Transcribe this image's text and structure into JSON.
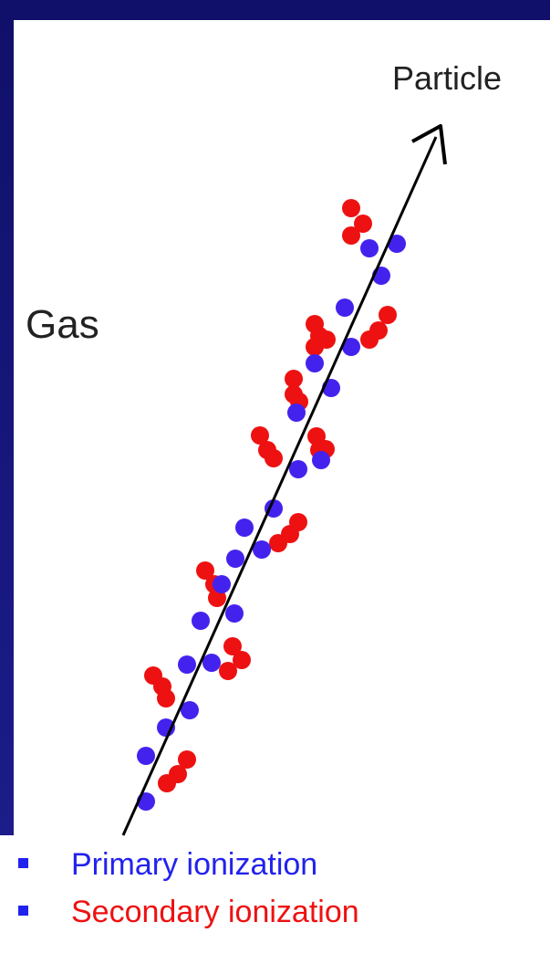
{
  "labels": {
    "particle": "Particle",
    "gas": "Gas"
  },
  "legend": [
    "Primary ionization",
    "Secondary ionization"
  ]
}
